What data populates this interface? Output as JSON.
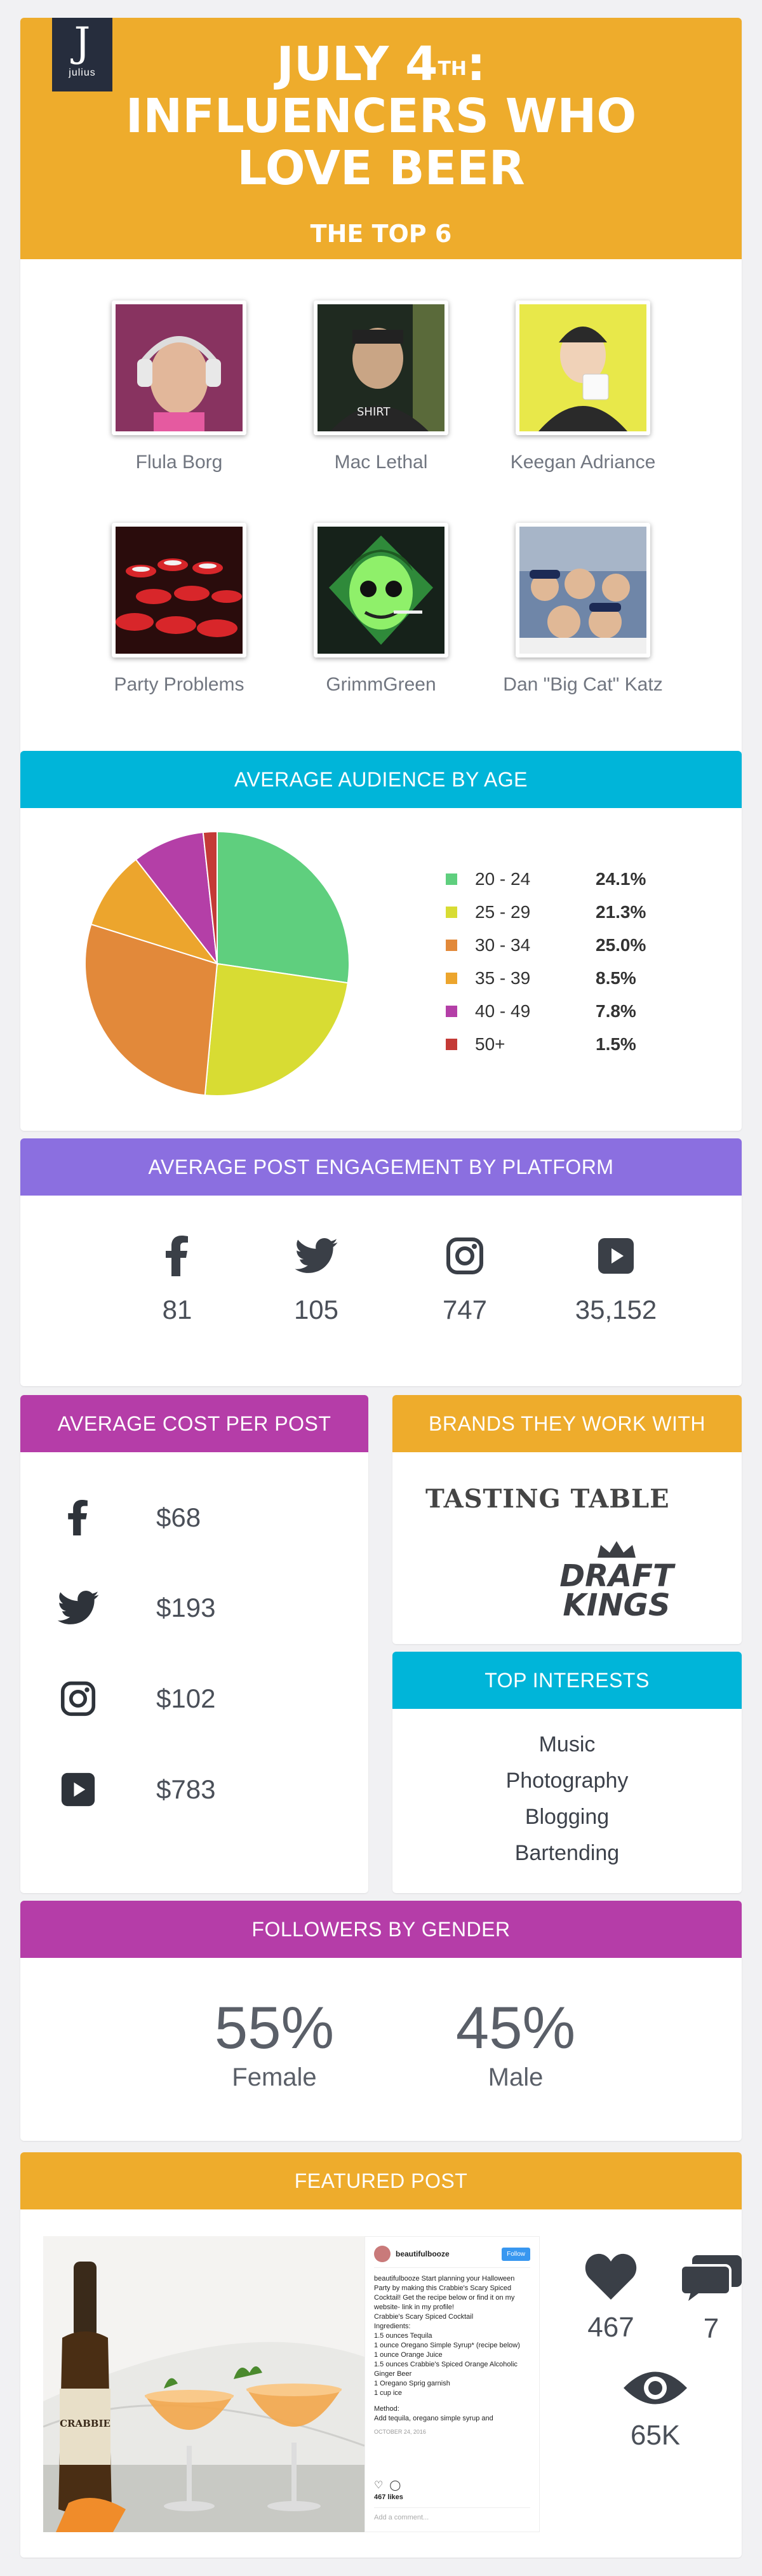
{
  "header": {
    "logo_text": "julius",
    "title_line1": "July 4",
    "title_sup": "TH",
    "title_line1_end": ":",
    "title_line2": "Influencers Who",
    "title_line3": "Love Beer",
    "subtitle": "THE TOP 6"
  },
  "influencers": [
    {
      "name": "Flula Borg"
    },
    {
      "name": "Mac Lethal"
    },
    {
      "name": "Keegan Adriance"
    },
    {
      "name": "Party Problems"
    },
    {
      "name": "GrimmGreen"
    },
    {
      "name": "Dan \"Big Cat\" Katz"
    }
  ],
  "age_section": {
    "title": "AVERAGE AUDIENCE BY AGE"
  },
  "chart_data": {
    "type": "pie",
    "categories": [
      "20 - 24",
      "25 - 29",
      "30 - 34",
      "35 - 39",
      "40 - 49",
      "50+"
    ],
    "values": [
      24.1,
      21.3,
      25.0,
      8.5,
      7.8,
      1.5
    ],
    "value_labels": [
      "24.1%",
      "21.3%",
      "25.0%",
      "8.5%",
      "7.8%",
      "1.5%"
    ],
    "colors": [
      "#5fcf7e",
      "#d8dc33",
      "#e2893a",
      "#eca52d",
      "#b43fa7",
      "#c43a36"
    ],
    "legend_position": "right"
  },
  "engagement": {
    "title": "AVERAGE POST ENGAGEMENT BY PLATFORM",
    "items": [
      {
        "icon": "facebook-icon",
        "value": "81"
      },
      {
        "icon": "twitter-icon",
        "value": "105"
      },
      {
        "icon": "instagram-icon",
        "value": "747"
      },
      {
        "icon": "youtube-icon",
        "value": "35,152"
      }
    ]
  },
  "cost": {
    "title": "AVERAGE COST PER POST",
    "items": [
      {
        "icon": "facebook-icon",
        "value": "$68"
      },
      {
        "icon": "twitter-icon",
        "value": "$193"
      },
      {
        "icon": "instagram-icon",
        "value": "$102"
      },
      {
        "icon": "youtube-icon",
        "value": "$783"
      }
    ]
  },
  "brands": {
    "title": "BRANDS THEY WORK WITH",
    "items": [
      {
        "name": "Tasting Table",
        "logo_line1": "TASTING TABLE"
      },
      {
        "name": "DraftKings",
        "logo_line1": "DRAFT",
        "logo_line2": "KINGS"
      }
    ]
  },
  "interests": {
    "title": "TOP INTERESTS",
    "items": [
      "Music",
      "Photography",
      "Blogging",
      "Bartending"
    ]
  },
  "gender": {
    "title": "FOLLOWERS BY GENDER",
    "female_pct": "55%",
    "female_label": "Female",
    "male_pct": "45%",
    "male_label": "Male"
  },
  "featured": {
    "title": "FEATURED POST",
    "post": {
      "username": "beautifulbooze",
      "follow_label": "Follow",
      "caption_lines": [
        "beautifulbooze Start planning your Halloween Party by making this Crabbie's Scary Spiced Cocktail! Get the recipe below or find it on my website- link in my profile!",
        "Crabbie's Scary Spiced Cocktail",
        "Ingredients:",
        "1.5 ounces Tequila",
        "1 ounce Oregano Simple Syrup* (recipe below)",
        "1 ounce Orange Juice",
        "1.5 ounces Crabbie's Spiced Orange Alcoholic Ginger Beer",
        "1 Oregano Sprig garnish",
        "1 cup ice",
        "",
        "Method:",
        "Add tequila, oregano simple syrup and"
      ],
      "date": "OCTOBER 24, 2016",
      "likes_text": "467 likes",
      "comment_placeholder": "Add a comment..."
    },
    "stats": [
      {
        "icon": "heart-icon",
        "value": "467"
      },
      {
        "icon": "comment-icon",
        "value": "7"
      },
      {
        "icon": "eye-icon",
        "value": "65K"
      }
    ]
  }
}
